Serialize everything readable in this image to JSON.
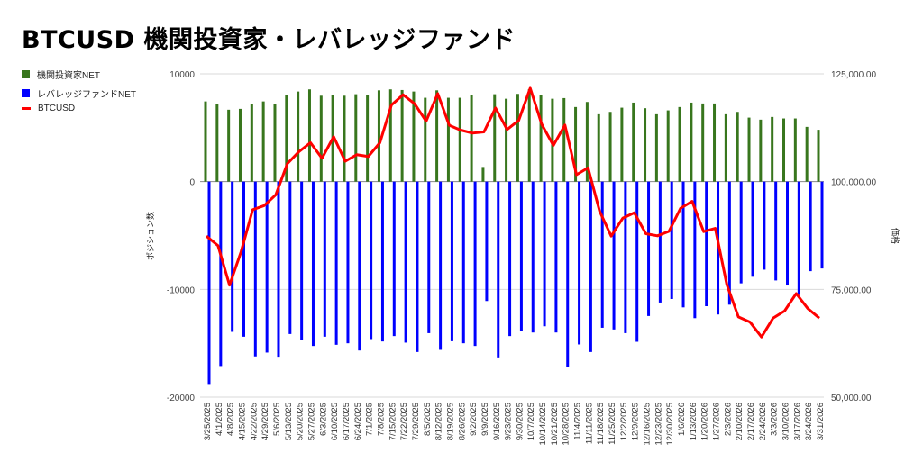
{
  "title": "BTCUSD  機関投資家・レバレッジファンド",
  "colors": {
    "inst": "#38761d",
    "lev": "#0000ff",
    "btc": "#ff0000",
    "grid": "#d9d9d9"
  },
  "chart_data": {
    "type": "bar+line",
    "title": "BTCUSD  機関投資家・レバレッジファンド",
    "ylabel_left": "ポジション数",
    "ylabel_right": "価格",
    "ylim_left": [
      -20000,
      10000
    ],
    "ylim_right": [
      50000,
      125000
    ],
    "yticks_left": [
      "10000",
      "0",
      "-10000",
      "-20000"
    ],
    "yticks_right": [
      "125,000.00",
      "100,000.00",
      "75,000.00",
      "50,000.00"
    ],
    "legend_position": "left",
    "legend": [
      "機関投資家NET",
      "レバレッジファンドNET",
      "BTCUSD"
    ],
    "categories": [
      "3/25/2025",
      "4/1/2025",
      "4/8/2025",
      "4/15/2025",
      "4/22/2025",
      "4/29/2025",
      "5/6/2025",
      "5/13/2025",
      "5/20/2025",
      "5/27/2025",
      "6/3/2025",
      "6/10/2025",
      "6/17/2025",
      "6/24/2025",
      "7/1/2025",
      "7/8/2025",
      "7/15/2025",
      "7/22/2025",
      "7/29/2025",
      "8/5/2025",
      "8/12/2025",
      "8/19/2025",
      "8/26/2025",
      "9/2/2025",
      "9/9/2025",
      "9/16/2025",
      "9/23/2025",
      "9/30/2025",
      "10/7/2025",
      "10/14/2025",
      "10/21/2025",
      "10/28/2025",
      "11/4/2025",
      "11/11/2025",
      "11/18/2025",
      "11/25/2025",
      "12/2/2025",
      "12/9/2025",
      "12/16/2025",
      "12/23/2025",
      "12/30/2025",
      "1/6/2026",
      "1/13/2026",
      "1/20/2026",
      "1/27/2026",
      "2/3/2026",
      "2/10/2026",
      "2/17/2026",
      "2/24/2026",
      "3/3/2026",
      "3/10/2026",
      "3/17/2026",
      "3/24/2026",
      "3/31/2026"
    ],
    "series": [
      {
        "name": "機関投資家NET",
        "type": "bar",
        "axis": "left",
        "values": [
          7440,
          7220,
          6670,
          6750,
          7190,
          7440,
          7220,
          8060,
          8360,
          8560,
          7970,
          8030,
          7970,
          8110,
          8000,
          8470,
          8560,
          8500,
          8360,
          7780,
          8470,
          7780,
          7780,
          8030,
          1360,
          8110,
          7690,
          8140,
          8580,
          8060,
          7690,
          7750,
          6920,
          7390,
          6250,
          6470,
          6860,
          7330,
          6810,
          6250,
          6610,
          6920,
          7330,
          7250,
          7250,
          6250,
          6470,
          5940,
          5750,
          6000,
          5860,
          5860,
          5080,
          4810
        ]
      },
      {
        "name": "レバレッジファンドNET",
        "type": "bar",
        "axis": "left",
        "values": [
          -18780,
          -17110,
          -13940,
          -14390,
          -16220,
          -15860,
          -16250,
          -14140,
          -14670,
          -15250,
          -14390,
          -15140,
          -15000,
          -15670,
          -14610,
          -14830,
          -14330,
          -14940,
          -15810,
          -14060,
          -15610,
          -14810,
          -15000,
          -15250,
          -11080,
          -16310,
          -14330,
          -13890,
          -14000,
          -13420,
          -14000,
          -17190,
          -15110,
          -15810,
          -13560,
          -13720,
          -14060,
          -14860,
          -12470,
          -11220,
          -10890,
          -11670,
          -12670,
          -11560,
          -12330,
          -11420,
          -9440,
          -8830,
          -8170,
          -9170,
          -9640,
          -10530,
          -8310,
          -8060
        ]
      },
      {
        "name": "BTCUSD",
        "type": "line",
        "axis": "right",
        "values": [
          87350,
          85150,
          75980,
          83750,
          93480,
          94440,
          96940,
          104170,
          106940,
          109020,
          105420,
          110420,
          104730,
          106250,
          105830,
          109020,
          117770,
          120150,
          118060,
          114020,
          120420,
          113060,
          111940,
          111250,
          111520,
          117080,
          112080,
          114170,
          121670,
          113270,
          108400,
          113130,
          101600,
          103190,
          93130,
          87360,
          91520,
          92780,
          87920,
          87430,
          88470,
          93820,
          95420,
          88400,
          89170,
          76110,
          68610,
          67430,
          63960,
          68330,
          70000,
          74030,
          70560,
          68330
        ]
      }
    ]
  }
}
